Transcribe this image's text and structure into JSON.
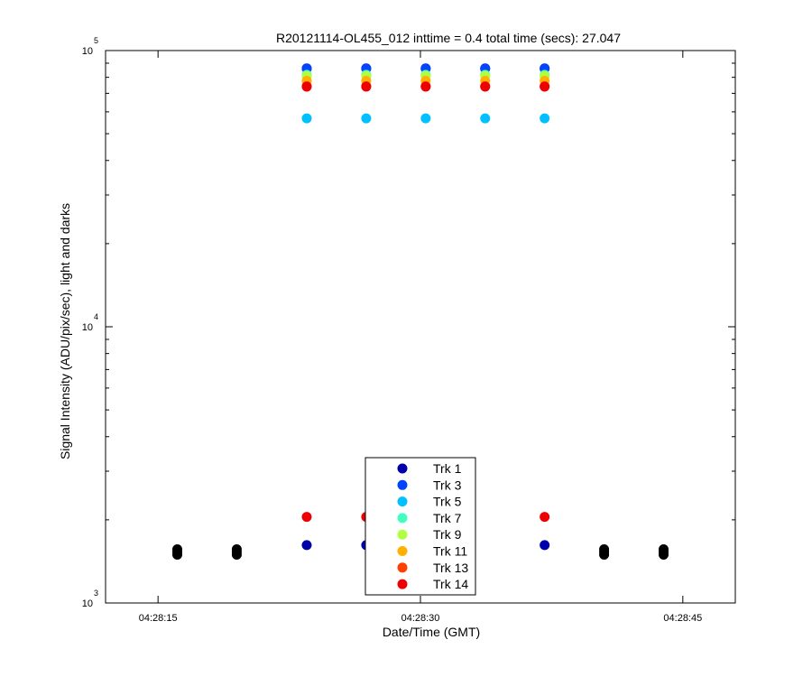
{
  "chart_data": {
    "type": "scatter",
    "title": "R20121114-OL455_012 inttime = 0.4 total time (secs): 27.047",
    "xlabel": "Date/Time (GMT)",
    "ylabel": "Signal Intensity (ADU/pix/sec), light and darks",
    "xscale": "time",
    "yscale": "log",
    "xlim": [
      "04:28:12",
      "04:28:48"
    ],
    "ylim": [
      1000,
      100000
    ],
    "xticks": [
      "04:28:15",
      "04:28:30",
      "04:28:45"
    ],
    "ytick_labels": [
      {
        "value": 1000,
        "base": "10",
        "exp": "3"
      },
      {
        "value": 10000,
        "base": "10",
        "exp": "4"
      },
      {
        "value": 100000,
        "base": "10",
        "exp": "5"
      }
    ],
    "grid": false,
    "legend_position": "bottom-center",
    "series": [
      {
        "name": "Trk 1",
        "color": "#0000aa",
        "x": [
          "04:28:23.5",
          "04:28:26.9",
          "04:28:30.3",
          "04:28:33.7",
          "04:28:37.1"
        ],
        "y": [
          86200,
          86200,
          86200,
          86200,
          86200
        ],
        "x_low": [
          "04:28:23.5",
          "04:28:26.9",
          "04:28:37.1"
        ],
        "y_low": [
          1620,
          1620,
          1620
        ]
      },
      {
        "name": "Trk 3",
        "color": "#0044ff",
        "x": [
          "04:28:23.5",
          "04:28:26.9",
          "04:28:30.3",
          "04:28:33.7",
          "04:28:37.1"
        ],
        "y": [
          86000,
          86000,
          86000,
          86000,
          86000
        ]
      },
      {
        "name": "Trk 5",
        "color": "#00c0ff",
        "x": [
          "04:28:23.5",
          "04:28:26.9",
          "04:28:30.3",
          "04:28:33.7",
          "04:28:37.1"
        ],
        "y": [
          56800,
          56800,
          56800,
          56800,
          56800
        ]
      },
      {
        "name": "Trk 7",
        "color": "#40ffc0",
        "x": [
          "04:28:23.5",
          "04:28:26.9",
          "04:28:30.3",
          "04:28:33.7",
          "04:28:37.1"
        ],
        "y": [
          81700,
          81700,
          81700,
          81700,
          81700
        ]
      },
      {
        "name": "Trk 9",
        "color": "#b0ff40",
        "x": [
          "04:28:23.5",
          "04:28:26.9",
          "04:28:30.3",
          "04:28:33.7",
          "04:28:37.1"
        ],
        "y": [
          80900,
          80900,
          80900,
          80900,
          80900
        ]
      },
      {
        "name": "Trk 11",
        "color": "#ffb000",
        "x": [
          "04:28:23.5",
          "04:28:26.9",
          "04:28:30.3",
          "04:28:33.7",
          "04:28:37.1"
        ],
        "y": [
          77700,
          77700,
          77700,
          77700,
          77700
        ]
      },
      {
        "name": "Trk 13",
        "color": "#ff4000",
        "x": [
          "04:28:23.5",
          "04:28:26.9",
          "04:28:30.3",
          "04:28:33.7",
          "04:28:37.1"
        ],
        "y": [
          74300,
          74300,
          74300,
          74300,
          74300
        ]
      },
      {
        "name": "Trk 14",
        "color": "#ee0000",
        "x": [
          "04:28:23.5",
          "04:28:26.9",
          "04:28:30.3",
          "04:28:33.7",
          "04:28:37.1"
        ],
        "y": [
          74000,
          74000,
          74000,
          74000,
          74000
        ],
        "x_low": [
          "04:28:23.5",
          "04:28:26.9",
          "04:28:37.1"
        ],
        "y_low": [
          2050,
          2050,
          2050
        ]
      }
    ],
    "darks": {
      "color": "#000000",
      "x": [
        "04:28:16.1",
        "04:28:19.5",
        "04:28:40.5",
        "04:28:43.9"
      ],
      "y": [
        1530,
        1530,
        1530,
        1530
      ]
    }
  }
}
